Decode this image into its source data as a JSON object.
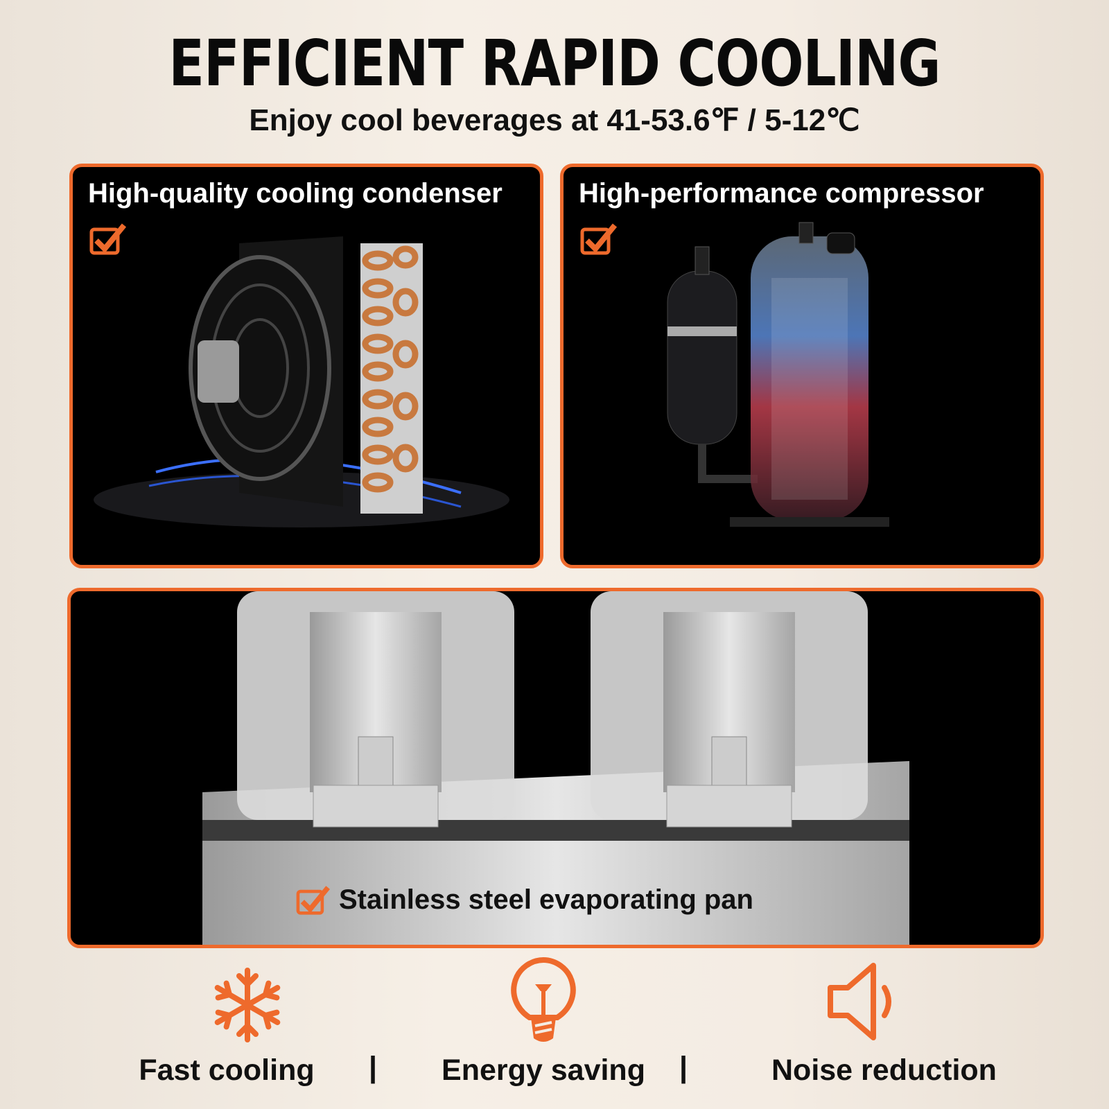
{
  "header": {
    "title": "EFFICIENT RAPID COOLING",
    "subtitle": "Enjoy cool beverages at 41-53.6℉ / 5-12℃"
  },
  "panels": [
    {
      "title": "High-quality cooling condenser",
      "icon": "checkbox-checked-icon"
    },
    {
      "title": "High-performance compressor",
      "icon": "checkbox-checked-icon"
    },
    {
      "title": "Stainless steel evaporating pan",
      "icon": "checkbox-checked-icon"
    }
  ],
  "features": [
    {
      "label": "Fast cooling",
      "icon": "snowflake-icon"
    },
    {
      "label": "Energy saving",
      "icon": "lightbulb-icon"
    },
    {
      "label": "Noise reduction",
      "icon": "speaker-icon"
    }
  ],
  "separator": "|",
  "colors": {
    "accent": "#ee6a2c",
    "panel_bg": "#000000",
    "background": "#f4ece3"
  }
}
